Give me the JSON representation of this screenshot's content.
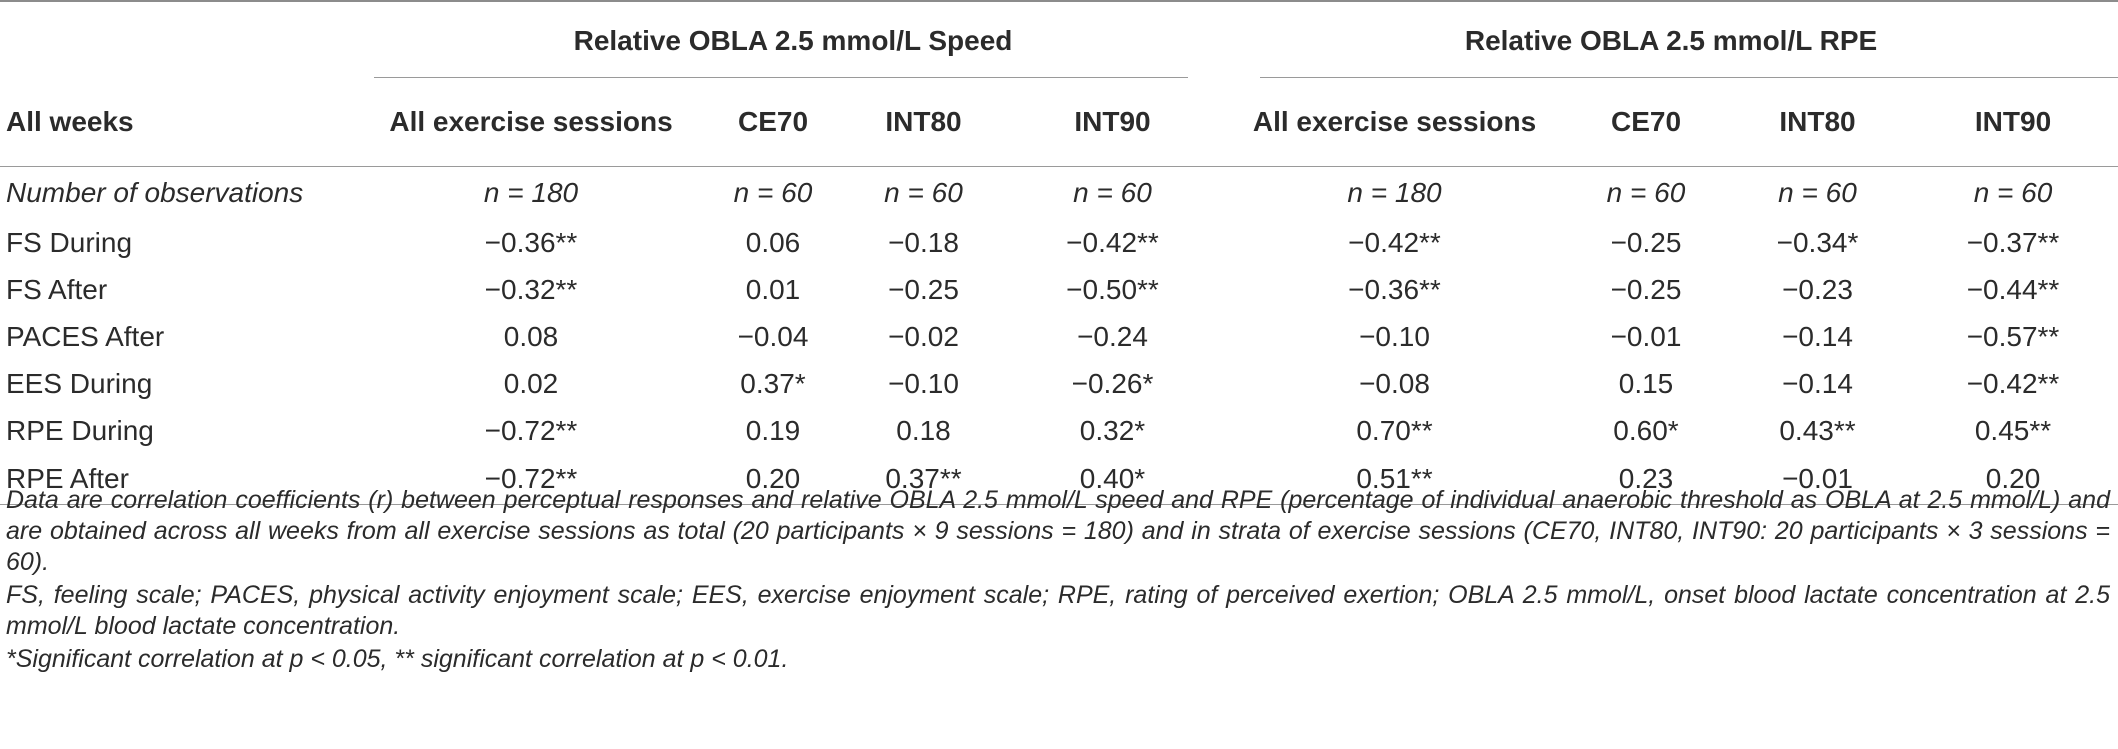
{
  "table": {
    "group_headers": {
      "speed": "Relative OBLA 2.5 mmol/L Speed",
      "rpe": "Relative OBLA 2.5 mmol/L RPE"
    },
    "columns": [
      "All weeks",
      "All exercise sessions",
      "CE70",
      "INT80",
      "INT90",
      "All exercise sessions",
      "CE70",
      "INT80",
      "INT90"
    ],
    "rows": [
      [
        "Number of observations",
        "n = 180",
        "n = 60",
        "n = 60",
        "n = 60",
        "n = 180",
        "n = 60",
        "n = 60",
        "n = 60"
      ],
      [
        "FS During",
        "−0.36**",
        "0.06",
        "−0.18",
        "−0.42**",
        "−0.42**",
        "−0.25",
        "−0.34*",
        "−0.37**"
      ],
      [
        "FS After",
        "−0.32**",
        "0.01",
        "−0.25",
        "−0.50**",
        "−0.36**",
        "−0.25",
        "−0.23",
        "−0.44**"
      ],
      [
        "PACES After",
        "0.08",
        "−0.04",
        "−0.02",
        "−0.24",
        "−0.10",
        "−0.01",
        "−0.14",
        "−0.57**"
      ],
      [
        "EES During",
        "0.02",
        "0.37*",
        "−0.10",
        "−0.26*",
        "−0.08",
        "0.15",
        "−0.14",
        "−0.42**"
      ],
      [
        "RPE During",
        "−0.72**",
        "0.19",
        "0.18",
        "0.32*",
        "0.70**",
        "0.60*",
        "0.43**",
        "0.45**"
      ],
      [
        "RPE After",
        "−0.72**",
        "0.20",
        "0.37**",
        "0.40*",
        "0.51**",
        "0.23",
        "−0.01",
        "0.20"
      ]
    ]
  },
  "notes": [
    "Data are correlation coefficients (r) between perceptual responses and relative OBLA 2.5 mmol/L speed and RPE (percentage of individual anaerobic threshold as OBLA at 2.5 mmol/L) and are obtained across all weeks from all exercise sessions as total (20 participants × 9 sessions = 180) and in strata of exercise sessions (CE70, INT80, INT90: 20 participants × 3 sessions = 60).",
    "FS, feeling scale; PACES, physical activity enjoyment scale; EES, exercise enjoyment scale; RPE, rating of perceived exertion; OBLA 2.5 mmol/L, onset blood lactate concentration at 2.5 mmol/L blood lactate concentration.",
    "*Significant correlation at p < 0.05, ** significant correlation at p < 0.01."
  ]
}
